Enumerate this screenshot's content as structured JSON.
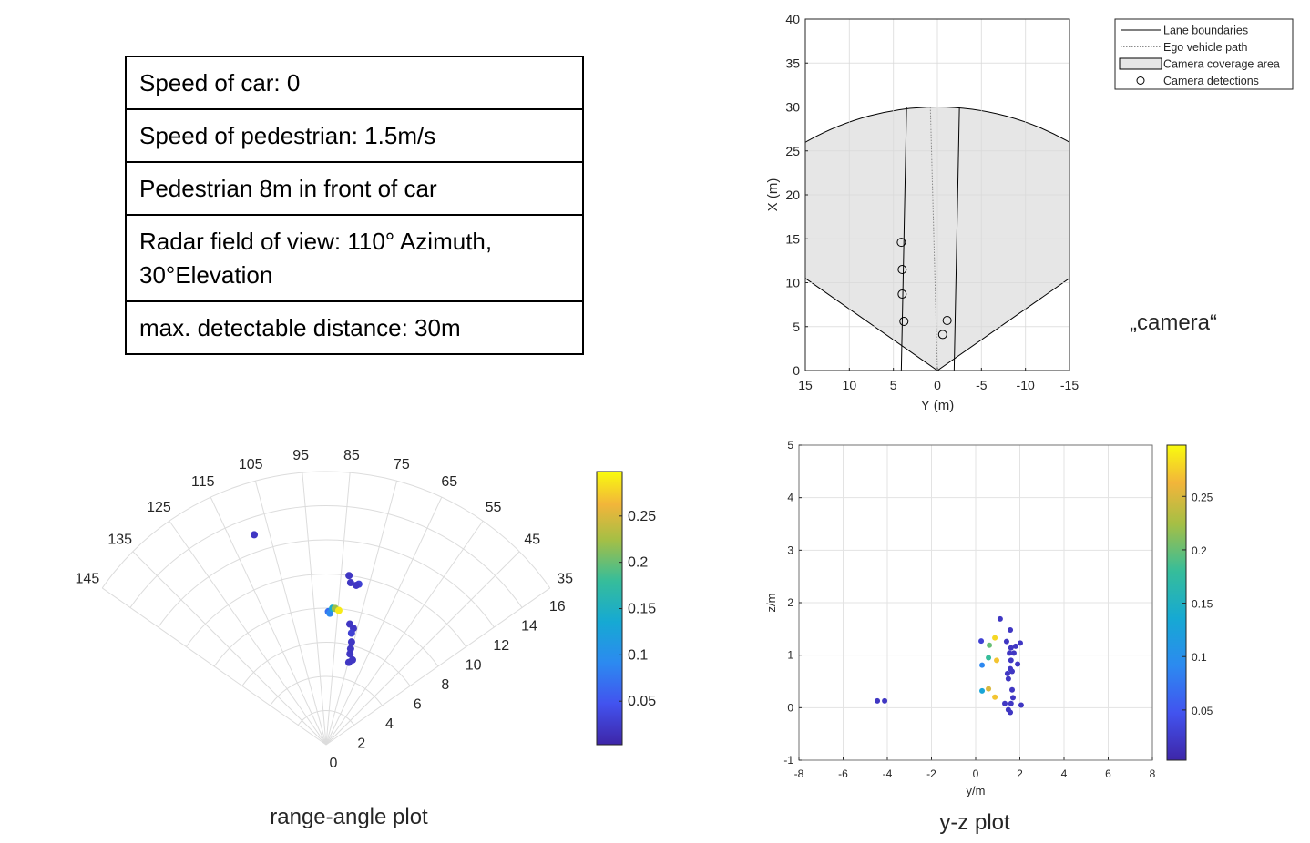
{
  "table": {
    "rows": [
      "Speed of car: 0",
      "Speed of pedestrian: 1.5m/s",
      "Pedestrian 8m in front of car",
      "Radar field of view: 110° Azimuth, 30°Elevation",
      "max. detectable distance: 30m"
    ]
  },
  "chart_data": [
    {
      "type": "birdseye",
      "annotation": "„camera“",
      "xlabel": "Y (m)",
      "ylabel": "X (m)",
      "xlim": [
        15,
        -15
      ],
      "xticks": [
        15,
        10,
        5,
        0,
        -5,
        -10,
        -15
      ],
      "ylim": [
        0,
        40
      ],
      "yticks": [
        0,
        5,
        10,
        15,
        20,
        25,
        30,
        35,
        40
      ],
      "grid": true,
      "legend": "outside-top-right",
      "series": [
        {
          "name": "Lane boundaries",
          "kind": "line",
          "color": "#000000",
          "x": [
            4.1,
            3.5,
            null,
            -1.9,
            -2.5
          ],
          "y": [
            0,
            30,
            null,
            0,
            30
          ]
        },
        {
          "name": "Ego vehicle path",
          "kind": "dotted",
          "color": "#8c8c8c",
          "x": [
            0,
            0.8
          ],
          "y": [
            0,
            30
          ]
        },
        {
          "name": "Camera coverage area",
          "kind": "sector",
          "color": "#e6e6e6",
          "range": 30,
          "fov": 110
        },
        {
          "name": "Camera detections",
          "kind": "marker",
          "color": "#000000",
          "x": [
            4.1,
            4.0,
            4.0,
            3.8,
            -1.1,
            -0.6
          ],
          "y": [
            14.6,
            11.5,
            8.7,
            5.6,
            5.7,
            4.1
          ]
        }
      ]
    },
    {
      "type": "polar",
      "caption": "range-angle plot",
      "thetalim": [
        35,
        145
      ],
      "thetaticks": [
        35,
        45,
        55,
        65,
        75,
        85,
        95,
        105,
        115,
        125,
        135,
        145
      ],
      "rlim": [
        0,
        16
      ],
      "rticks": [
        0,
        2,
        4,
        6,
        8,
        10,
        12,
        14,
        16
      ],
      "grid": true,
      "colorbar": {
        "clim": [
          0.003,
          0.298
        ],
        "ticks": [
          0.05,
          0.1,
          0.15,
          0.2,
          0.25
        ]
      },
      "theta": [
        108.9,
        82.3,
        81.4,
        78.5,
        79.3,
        89.0,
        88.4,
        87.3,
        86.2,
        84.6,
        78.9,
        76.8,
        77.2,
        76.1,
        75.7,
        75.3,
        72.7,
        74.6
      ],
      "r": [
        13.0,
        10.0,
        9.6,
        9.6,
        9.5,
        7.8,
        7.7,
        8.0,
        8.0,
        7.9,
        7.2,
        7.0,
        6.7,
        6.2,
        5.8,
        5.5,
        5.2,
        5.0
      ],
      "values": [
        0.02,
        0.02,
        0.02,
        0.03,
        0.02,
        0.07,
        0.09,
        0.14,
        0.22,
        0.29,
        0.02,
        0.02,
        0.03,
        0.02,
        0.02,
        0.02,
        0.02,
        0.02
      ]
    },
    {
      "type": "scatter",
      "caption": "y-z plot",
      "xlabel": "y/m",
      "ylabel": "z/m",
      "xlim": [
        -8,
        8
      ],
      "xticks": [
        -8,
        -6,
        -4,
        -2,
        0,
        2,
        4,
        6,
        8
      ],
      "ylim": [
        -1,
        5
      ],
      "yticks": [
        -1,
        0,
        1,
        2,
        3,
        4,
        5
      ],
      "grid": true,
      "colorbar": {
        "clim": [
          0.003,
          0.298
        ],
        "ticks": [
          0.05,
          0.1,
          0.15,
          0.2,
          0.25
        ]
      },
      "x": [
        -4.45,
        -4.12,
        1.11,
        1.57,
        0.25,
        0.87,
        0.62,
        1.4,
        1.6,
        1.81,
        2.02,
        1.53,
        1.73,
        0.58,
        0.95,
        0.29,
        1.6,
        1.9,
        1.57,
        1.44,
        1.65,
        1.48,
        1.65,
        0.58,
        0.29,
        0.87,
        1.69,
        1.32,
        1.6,
        2.06,
        1.48,
        1.57
      ],
      "y": [
        0.13,
        0.13,
        1.69,
        1.48,
        1.27,
        1.33,
        1.19,
        1.26,
        1.14,
        1.17,
        1.23,
        1.04,
        1.04,
        0.95,
        0.9,
        0.81,
        0.9,
        0.83,
        0.74,
        0.65,
        0.69,
        0.55,
        0.34,
        0.36,
        0.32,
        0.2,
        0.19,
        0.08,
        0.08,
        0.05,
        -0.04,
        -0.09
      ],
      "values": [
        0.02,
        0.02,
        0.02,
        0.02,
        0.03,
        0.28,
        0.2,
        0.02,
        0.02,
        0.02,
        0.02,
        0.02,
        0.02,
        0.18,
        0.27,
        0.09,
        0.02,
        0.02,
        0.02,
        0.02,
        0.02,
        0.02,
        0.02,
        0.25,
        0.13,
        0.27,
        0.02,
        0.02,
        0.02,
        0.02,
        0.02,
        0.02
      ]
    }
  ]
}
